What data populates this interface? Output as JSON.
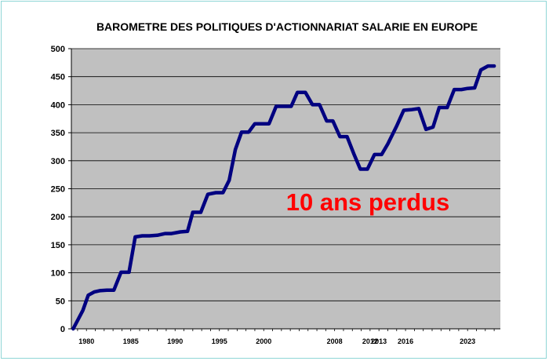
{
  "chart_data": {
    "type": "line",
    "title": "BAROMETRE DES POLITIQUES D'ACTIONNARIAT SALARIE EN EUROPE",
    "xlabel": "",
    "ylabel": "",
    "ylim": [
      0,
      500
    ],
    "yticks": [
      0,
      50,
      100,
      150,
      200,
      250,
      300,
      350,
      400,
      450,
      500
    ],
    "xlim": [
      1978.3,
      2026.7
    ],
    "xtick_labels": [
      {
        "value": 1980,
        "label": "1980"
      },
      {
        "value": 1985,
        "label": "1985"
      },
      {
        "value": 1990,
        "label": "1990"
      },
      {
        "value": 1995,
        "label": "1995"
      },
      {
        "value": 2000,
        "label": "2000"
      },
      {
        "value": 2008,
        "label": "2008"
      },
      {
        "value": 2012,
        "label": "2012"
      },
      {
        "value": 2013,
        "label": "2013"
      },
      {
        "value": 2016,
        "label": "2016"
      },
      {
        "value": 2023,
        "label": "2023"
      }
    ],
    "grid": true,
    "background": "#c0c0c0",
    "line_color": "#000080",
    "annotation": {
      "text": "10 ans perdus",
      "color": "#ff0000"
    },
    "series": [
      {
        "name": "",
        "points": [
          [
            1978.5,
            0
          ],
          [
            1979.6,
            33
          ],
          [
            1980.2,
            60
          ],
          [
            1980.9,
            66
          ],
          [
            1981.5,
            68
          ],
          [
            1982.3,
            69
          ],
          [
            1983.1,
            69
          ],
          [
            1983.9,
            101
          ],
          [
            1984.8,
            101
          ],
          [
            1985.5,
            164
          ],
          [
            1986.3,
            166
          ],
          [
            1987.1,
            166
          ],
          [
            1988.0,
            167
          ],
          [
            1988.9,
            170
          ],
          [
            1989.6,
            170
          ],
          [
            1990.6,
            173
          ],
          [
            1991.4,
            174
          ],
          [
            1992.0,
            208
          ],
          [
            1992.9,
            208
          ],
          [
            1993.7,
            240
          ],
          [
            1994.6,
            243
          ],
          [
            1995.4,
            243
          ],
          [
            1996.1,
            265
          ],
          [
            1996.8,
            320
          ],
          [
            1997.5,
            351
          ],
          [
            1998.3,
            351
          ],
          [
            1999.0,
            366
          ],
          [
            1999.9,
            366
          ],
          [
            2000.6,
            366
          ],
          [
            2001.4,
            397
          ],
          [
            2002.2,
            397
          ],
          [
            2003.1,
            397
          ],
          [
            2003.8,
            422
          ],
          [
            2004.7,
            422
          ],
          [
            2005.5,
            400
          ],
          [
            2006.3,
            400
          ],
          [
            2007.1,
            371
          ],
          [
            2007.8,
            371
          ],
          [
            2008.6,
            343
          ],
          [
            2009.4,
            343
          ],
          [
            2010.2,
            311
          ],
          [
            2010.9,
            285
          ],
          [
            2011.7,
            285
          ],
          [
            2012.5,
            311
          ],
          [
            2013.3,
            311
          ],
          [
            2014.0,
            330
          ],
          [
            2015.0,
            362
          ],
          [
            2015.8,
            390
          ],
          [
            2016.6,
            391
          ],
          [
            2017.5,
            393
          ],
          [
            2018.3,
            356
          ],
          [
            2019.1,
            360
          ],
          [
            2019.8,
            395
          ],
          [
            2020.7,
            395
          ],
          [
            2021.5,
            427
          ],
          [
            2022.3,
            427
          ],
          [
            2023.0,
            429
          ],
          [
            2023.8,
            430
          ],
          [
            2024.5,
            462
          ],
          [
            2025.3,
            469
          ],
          [
            2026.0,
            469
          ]
        ]
      }
    ]
  }
}
